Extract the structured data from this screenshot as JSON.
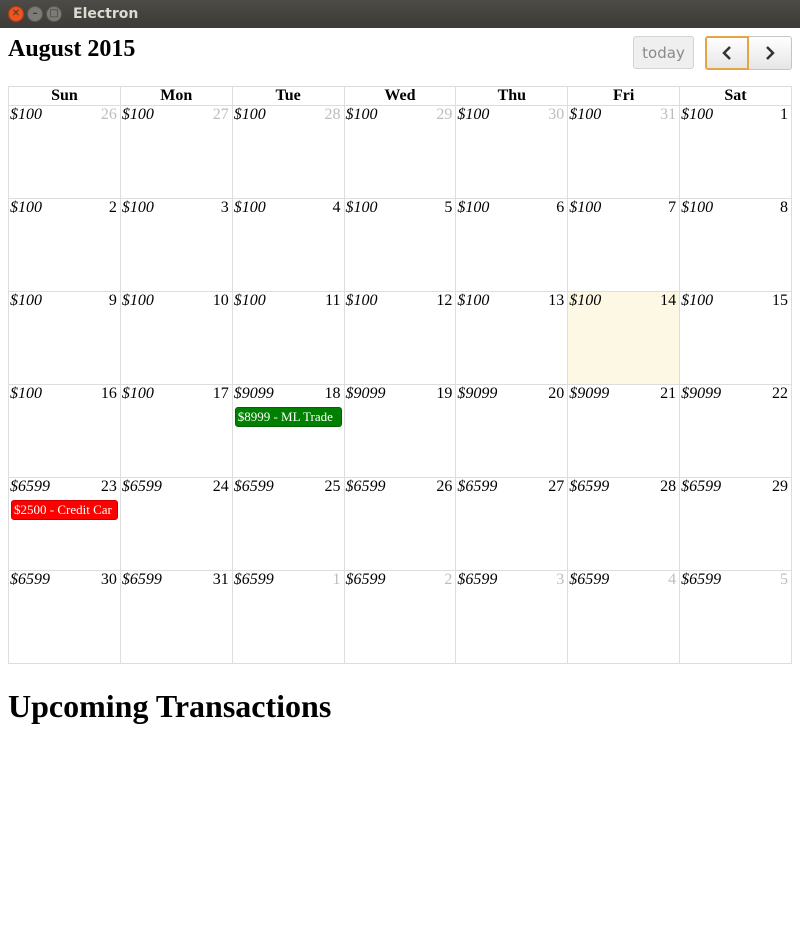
{
  "window": {
    "title": "Electron"
  },
  "toolbar": {
    "month_title": "August 2015",
    "today_label": "today"
  },
  "weekdays": [
    "Sun",
    "Mon",
    "Tue",
    "Wed",
    "Thu",
    "Fri",
    "Sat"
  ],
  "weeks": [
    [
      {
        "amount": "$100",
        "day": "26",
        "other": true
      },
      {
        "amount": "$100",
        "day": "27",
        "other": true
      },
      {
        "amount": "$100",
        "day": "28",
        "other": true
      },
      {
        "amount": "$100",
        "day": "29",
        "other": true
      },
      {
        "amount": "$100",
        "day": "30",
        "other": true
      },
      {
        "amount": "$100",
        "day": "31",
        "other": true
      },
      {
        "amount": "$100",
        "day": "1"
      }
    ],
    [
      {
        "amount": "$100",
        "day": "2"
      },
      {
        "amount": "$100",
        "day": "3"
      },
      {
        "amount": "$100",
        "day": "4"
      },
      {
        "amount": "$100",
        "day": "5"
      },
      {
        "amount": "$100",
        "day": "6"
      },
      {
        "amount": "$100",
        "day": "7"
      },
      {
        "amount": "$100",
        "day": "8"
      }
    ],
    [
      {
        "amount": "$100",
        "day": "9"
      },
      {
        "amount": "$100",
        "day": "10"
      },
      {
        "amount": "$100",
        "day": "11"
      },
      {
        "amount": "$100",
        "day": "12"
      },
      {
        "amount": "$100",
        "day": "13"
      },
      {
        "amount": "$100",
        "day": "14",
        "today": true
      },
      {
        "amount": "$100",
        "day": "15"
      }
    ],
    [
      {
        "amount": "$100",
        "day": "16"
      },
      {
        "amount": "$100",
        "day": "17"
      },
      {
        "amount": "$9099",
        "day": "18",
        "event": {
          "label": "$8999 - ML Trade",
          "color": "green"
        }
      },
      {
        "amount": "$9099",
        "day": "19"
      },
      {
        "amount": "$9099",
        "day": "20"
      },
      {
        "amount": "$9099",
        "day": "21"
      },
      {
        "amount": "$9099",
        "day": "22"
      }
    ],
    [
      {
        "amount": "$6599",
        "day": "23",
        "event": {
          "label": "$2500 - Credit Car",
          "color": "red"
        }
      },
      {
        "amount": "$6599",
        "day": "24"
      },
      {
        "amount": "$6599",
        "day": "25"
      },
      {
        "amount": "$6599",
        "day": "26"
      },
      {
        "amount": "$6599",
        "day": "27"
      },
      {
        "amount": "$6599",
        "day": "28"
      },
      {
        "amount": "$6599",
        "day": "29"
      }
    ],
    [
      {
        "amount": "$6599",
        "day": "30"
      },
      {
        "amount": "$6599",
        "day": "31"
      },
      {
        "amount": "$6599",
        "day": "1",
        "other": true
      },
      {
        "amount": "$6599",
        "day": "2",
        "other": true
      },
      {
        "amount": "$6599",
        "day": "3",
        "other": true
      },
      {
        "amount": "$6599",
        "day": "4",
        "other": true
      },
      {
        "amount": "$6599",
        "day": "5",
        "other": true
      }
    ]
  ],
  "upcoming": {
    "title": "Upcoming Transactions"
  },
  "colors": {
    "today_bg": "#fcf8e3",
    "event_green": "#008000",
    "event_red": "#ff0000",
    "other_month_text": "#bdbdbd"
  }
}
